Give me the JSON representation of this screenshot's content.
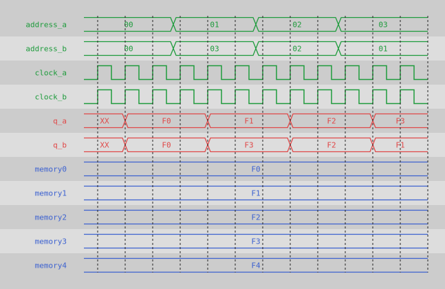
{
  "time_range": [
    0,
    25
  ],
  "grid_times": [
    1,
    3,
    5,
    7,
    9,
    11,
    13,
    15,
    17,
    19,
    21,
    23,
    25
  ],
  "colors": {
    "row_dark": "#cccccc",
    "row_light": "#dddddd",
    "green": "#1e9b3c",
    "red": "#e04848",
    "blue": "#3d62d0",
    "grid": "#222222"
  },
  "signals": [
    {
      "name": "address_a",
      "type": "bus",
      "color": "green",
      "segments": [
        {
          "start": 0,
          "end": 6.5,
          "value": "00"
        },
        {
          "start": 6.5,
          "end": 12.5,
          "value": "01"
        },
        {
          "start": 12.5,
          "end": 18.5,
          "value": "02"
        },
        {
          "start": 18.5,
          "end": 25,
          "value": "03"
        }
      ]
    },
    {
      "name": "address_b",
      "type": "bus",
      "color": "green",
      "segments": [
        {
          "start": 0,
          "end": 6.5,
          "value": "00"
        },
        {
          "start": 6.5,
          "end": 12.5,
          "value": "03"
        },
        {
          "start": 12.5,
          "end": 18.5,
          "value": "02"
        },
        {
          "start": 18.5,
          "end": 25,
          "value": "01"
        }
      ]
    },
    {
      "name": "clock_a",
      "type": "clock",
      "color": "green",
      "first_rise": 1,
      "period": 2
    },
    {
      "name": "clock_b",
      "type": "clock",
      "color": "green",
      "first_rise": 1,
      "period": 2
    },
    {
      "name": "q_a",
      "type": "bus",
      "color": "red",
      "segments": [
        {
          "start": 0,
          "end": 3,
          "value": "XX"
        },
        {
          "start": 3,
          "end": 9,
          "value": "F0"
        },
        {
          "start": 9,
          "end": 15,
          "value": "F1"
        },
        {
          "start": 15,
          "end": 21,
          "value": "F2"
        },
        {
          "start": 21,
          "end": 25,
          "value": "F3"
        }
      ]
    },
    {
      "name": "q_b",
      "type": "bus",
      "color": "red",
      "segments": [
        {
          "start": 0,
          "end": 3,
          "value": "XX"
        },
        {
          "start": 3,
          "end": 9,
          "value": "F0"
        },
        {
          "start": 9,
          "end": 15,
          "value": "F3"
        },
        {
          "start": 15,
          "end": 21,
          "value": "F2"
        },
        {
          "start": 21,
          "end": 25,
          "value": "F1"
        }
      ]
    },
    {
      "name": "memory0",
      "type": "bus",
      "color": "blue",
      "segments": [
        {
          "start": 0,
          "end": 25,
          "value": "F0"
        }
      ]
    },
    {
      "name": "memory1",
      "type": "bus",
      "color": "blue",
      "segments": [
        {
          "start": 0,
          "end": 25,
          "value": "F1"
        }
      ]
    },
    {
      "name": "memory2",
      "type": "bus",
      "color": "blue",
      "segments": [
        {
          "start": 0,
          "end": 25,
          "value": "F2"
        }
      ]
    },
    {
      "name": "memory3",
      "type": "bus",
      "color": "blue",
      "segments": [
        {
          "start": 0,
          "end": 25,
          "value": "F3"
        }
      ]
    },
    {
      "name": "memory4",
      "type": "bus",
      "color": "blue",
      "segments": [
        {
          "start": 0,
          "end": 25,
          "value": "F4"
        }
      ]
    }
  ]
}
